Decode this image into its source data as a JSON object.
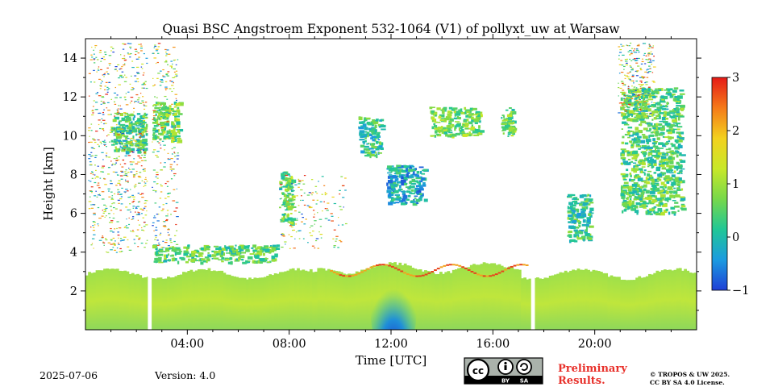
{
  "chart_data": {
    "type": "heatmap",
    "title": "Quasi BSC Angstroem Exponent 532-1064 (V1) of pollyxt_uw at Warsaw",
    "xlabel": "Time [UTC]",
    "ylabel": "Height [km]",
    "xlim_hours": [
      0,
      24
    ],
    "ylim_km": [
      0,
      15
    ],
    "x_ticks": [
      {
        "hour": 4,
        "label": "04:00"
      },
      {
        "hour": 8,
        "label": "08:00"
      },
      {
        "hour": 12,
        "label": "12:00"
      },
      {
        "hour": 16,
        "label": "16:00"
      },
      {
        "hour": 20,
        "label": "20:00"
      }
    ],
    "y_ticks": [
      {
        "value": 2,
        "label": "2"
      },
      {
        "value": 4,
        "label": "4"
      },
      {
        "value": 6,
        "label": "6"
      },
      {
        "value": 8,
        "label": "8"
      },
      {
        "value": 10,
        "label": "10"
      },
      {
        "value": 12,
        "label": "12"
      },
      {
        "value": 14,
        "label": "14"
      }
    ],
    "colorbar": {
      "range": [
        -1,
        3
      ],
      "ticks": [
        {
          "value": 3,
          "label": "3"
        },
        {
          "value": 2,
          "label": "2"
        },
        {
          "value": 1,
          "label": "1"
        },
        {
          "value": 0,
          "label": "0"
        },
        {
          "value": -1,
          "label": "−1"
        }
      ],
      "stops": [
        "#1f3fd6",
        "#1b9be0",
        "#21c796",
        "#77d84a",
        "#c8e829",
        "#f3d11f",
        "#f57a19",
        "#e51b17"
      ]
    },
    "typical_values": {
      "boundary_layer": 0.8,
      "boundary_layer_noon_core": -0.3,
      "elevated_layers": 0.4,
      "cirrus_layers": 0.3
    },
    "features": [
      {
        "name": "boundary-layer",
        "t0": 0.0,
        "t1": 24.0,
        "h0": 0.0,
        "h1": 2.9,
        "value": 0.8
      },
      {
        "name": "noon-convective-core",
        "t0": 11.5,
        "t1": 12.7,
        "h0": 0.0,
        "h1": 2.6,
        "value": -0.4
      },
      {
        "name": "morning-aerosol-layer",
        "t0": 2.6,
        "t1": 7.5,
        "h0": 3.5,
        "h1": 4.4,
        "value": 0.5
      },
      {
        "name": "cirrus-0130",
        "t0": 1.0,
        "t1": 2.4,
        "h0": 9.2,
        "h1": 11.2,
        "value": 0.4
      },
      {
        "name": "cirrus-0250",
        "t0": 2.6,
        "t1": 3.7,
        "h0": 9.8,
        "h1": 11.8,
        "value": 0.7
      },
      {
        "name": "cloud-0800",
        "t0": 7.6,
        "t1": 8.1,
        "h0": 5.5,
        "h1": 8.2,
        "value": 0.6
      },
      {
        "name": "cirrus-1100",
        "t0": 10.7,
        "t1": 11.6,
        "h0": 9.0,
        "h1": 11.0,
        "value": 0.2
      },
      {
        "name": "cirrus-1215",
        "t0": 11.8,
        "t1": 13.3,
        "h0": 6.5,
        "h1": 8.5,
        "value": -0.2
      },
      {
        "name": "cirrus-1430",
        "t0": 13.5,
        "t1": 15.5,
        "h0": 10.0,
        "h1": 11.5,
        "value": 0.7
      },
      {
        "name": "cirrus-1630",
        "t0": 16.3,
        "t1": 16.8,
        "h0": 10.0,
        "h1": 11.5,
        "value": 0.6
      },
      {
        "name": "cloud-1930",
        "t0": 18.9,
        "t1": 19.8,
        "h0": 4.6,
        "h1": 7.0,
        "value": 0.3
      },
      {
        "name": "cirrus-2130",
        "t0": 21.0,
        "t1": 23.4,
        "h0": 6.0,
        "h1": 12.5,
        "value": 0.5
      }
    ],
    "data_gaps": [
      {
        "t0": 2.45,
        "t1": 2.6
      },
      {
        "t0": 17.5,
        "t1": 17.65
      }
    ]
  },
  "footer": {
    "date": "2025-07-06",
    "version": "Version: 4.0",
    "preliminary_line1": "Preliminary",
    "preliminary_line2": "Results.",
    "copyright_line1": "© TROPOS & UW 2025.",
    "copyright_line2": "CC BY SA 4.0 License.",
    "cc_badge": {
      "icon": "cc-by-sa-icon",
      "by_label": "BY",
      "sa_label": "SA"
    }
  }
}
